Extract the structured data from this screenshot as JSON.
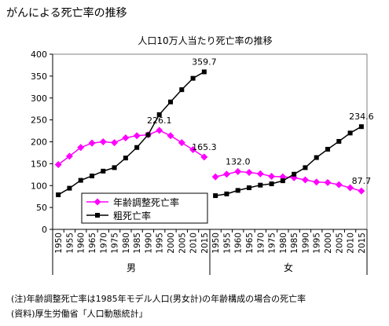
{
  "page_title": "がんによる死亡率の推移",
  "notes": [
    "(注)年齢調整死亡率は1985年モデル人口(男女計)の年齢構成の場合の死亡率",
    "(資料)厚生労働省「人口動態統計」"
  ],
  "colors": {
    "age_adjusted": "#ff00ff",
    "crude": "#000000"
  },
  "chart_data": {
    "type": "line",
    "title": "人口10万人当たり死亡率の推移",
    "xlabel": "",
    "ylabel": "",
    "ylim": [
      0,
      400
    ],
    "yticks": [
      0,
      50,
      100,
      150,
      200,
      250,
      300,
      350,
      400
    ],
    "grid": false,
    "legend_position": "center-left (male panel)",
    "panels": [
      {
        "name": "男",
        "x": [
          "1950",
          "1955",
          "1960",
          "1965",
          "1970",
          "1975",
          "1980",
          "1985",
          "1990",
          "1995",
          "2000",
          "2005",
          "2010",
          "2015"
        ],
        "series": [
          {
            "name": "年齢調整死亡率",
            "marker": "diamond",
            "values": [
              148,
              167,
              187,
              197,
              200,
              198,
              209,
              214,
              216,
              226.1,
              214,
              198,
              182,
              165.3
            ]
          },
          {
            "name": "粗死亡率",
            "marker": "square",
            "values": [
              79,
              94,
              112,
              122,
              133,
              141,
              163,
              187,
              216,
              262,
              291,
              319,
              345,
              359.7
            ]
          }
        ],
        "data_labels": [
          {
            "series": "年齢調整死亡率",
            "x": "1995",
            "text": "226.1"
          },
          {
            "series": "年齢調整死亡率",
            "x": "2015",
            "text": "165.3"
          },
          {
            "series": "粗死亡率",
            "x": "2015",
            "text": "359.7"
          }
        ]
      },
      {
        "name": "女",
        "x": [
          "1950",
          "1955",
          "1960",
          "1965",
          "1970",
          "1975",
          "1980",
          "1985",
          "1990",
          "1995",
          "2000",
          "2005",
          "2010",
          "2015"
        ],
        "series": [
          {
            "name": "年齢調整死亡率",
            "marker": "diamond",
            "values": [
              120,
              126,
              132.0,
              130,
              127,
              121,
              120,
              118,
              113,
              108,
              107,
              102,
              95,
              87.7
            ]
          },
          {
            "name": "粗死亡率",
            "marker": "square",
            "values": [
              77,
              81,
              89,
              95,
              101,
              104,
              111,
              126,
              141,
              164,
              183,
              201,
              220,
              234.6
            ]
          }
        ],
        "data_labels": [
          {
            "series": "年齢調整死亡率",
            "x": "1960",
            "text": "132.0"
          },
          {
            "series": "年齢調整死亡率",
            "x": "2015",
            "text": "87.7"
          },
          {
            "series": "粗死亡率",
            "x": "2015",
            "text": "234.6"
          }
        ]
      }
    ],
    "legend": [
      "年齢調整死亡率",
      "粗死亡率"
    ]
  }
}
